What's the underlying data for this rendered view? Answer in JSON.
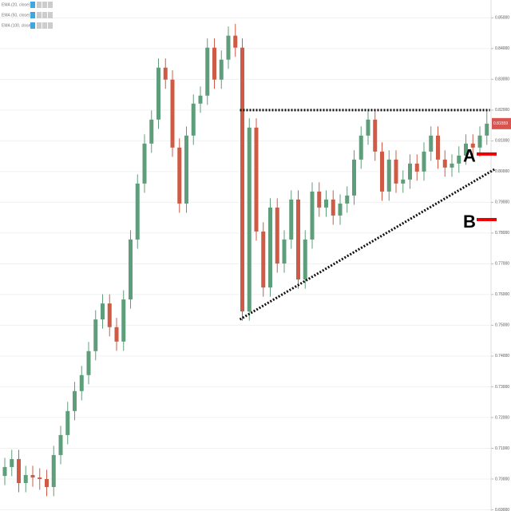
{
  "chart_data": {
    "type": "candlestick",
    "categories": [
      null,
      null,
      null,
      null,
      null,
      null,
      null,
      null,
      null,
      null,
      null,
      null,
      null,
      null,
      null,
      null,
      null,
      null,
      null,
      null,
      null,
      null,
      null,
      null,
      null,
      null,
      null,
      null,
      null,
      null,
      null,
      null,
      null,
      null,
      null,
      null,
      null,
      null,
      null,
      null,
      null,
      null,
      null,
      null,
      null,
      null,
      null,
      null,
      null,
      null,
      null,
      null,
      null,
      null,
      null,
      null,
      null,
      null,
      null,
      null,
      null,
      null,
      null,
      null,
      null,
      null,
      null,
      null,
      null,
      null
    ],
    "open": [
      0.701,
      0.7039,
      0.7065,
      0.6987,
      0.7013,
      0.7005,
      0.7,
      0.6974,
      0.7078,
      0.7143,
      0.7221,
      0.7286,
      0.7338,
      0.7416,
      0.7519,
      0.7571,
      0.7494,
      0.7447,
      0.7584,
      0.7779,
      0.7961,
      0.8091,
      0.8169,
      0.8338,
      0.8299,
      0.8078,
      0.7896,
      0.8117,
      0.8221,
      0.8247,
      0.8403,
      0.8299,
      0.8364,
      0.8442,
      0.8403,
      0.7545,
      0.8143,
      0.7805,
      0.7623,
      0.7883,
      0.7701,
      0.7779,
      0.7909,
      0.7649,
      0.7779,
      0.7935,
      0.7883,
      0.7909,
      0.7857,
      0.7896,
      0.7922,
      0.8039,
      0.8117,
      0.8169,
      0.8065,
      0.7935,
      0.8039,
      0.7961,
      0.7974,
      0.8026,
      0.8,
      0.8065,
      0.8117,
      0.8039,
      0.8013,
      0.8026,
      0.8052,
      0.8091,
      0.8078,
      0.8117
    ],
    "high": [
      0.7069,
      0.7095,
      0.7095,
      0.7043,
      0.7043,
      0.7035,
      0.703,
      0.7108,
      0.7173,
      0.7251,
      0.7316,
      0.7368,
      0.7446,
      0.7549,
      0.7601,
      0.7601,
      0.7524,
      0.7614,
      0.7809,
      0.7991,
      0.8121,
      0.8199,
      0.8368,
      0.8368,
      0.8329,
      0.8108,
      0.8147,
      0.8251,
      0.8277,
      0.8433,
      0.8433,
      0.8394,
      0.8472,
      0.848,
      0.8433,
      0.8173,
      0.8173,
      0.7835,
      0.7913,
      0.7913,
      0.7809,
      0.7939,
      0.7939,
      0.7809,
      0.7965,
      0.7965,
      0.7939,
      0.7939,
      0.7926,
      0.7952,
      0.8069,
      0.8147,
      0.8199,
      0.8199,
      0.8095,
      0.8069,
      0.8069,
      0.8004,
      0.8056,
      0.8056,
      0.8095,
      0.8147,
      0.8147,
      0.8069,
      0.8056,
      0.8082,
      0.8121,
      0.8121,
      0.8147,
      0.8199
    ],
    "low": [
      0.698,
      0.7009,
      0.6957,
      0.6957,
      0.6975,
      0.6965,
      0.6944,
      0.6944,
      0.7048,
      0.7113,
      0.7191,
      0.7256,
      0.7308,
      0.7386,
      0.7489,
      0.7464,
      0.7417,
      0.7417,
      0.7554,
      0.7749,
      0.7931,
      0.8061,
      0.8139,
      0.8269,
      0.8048,
      0.7866,
      0.7866,
      0.8087,
      0.8191,
      0.8217,
      0.8269,
      0.8269,
      0.8334,
      0.8373,
      0.7515,
      0.7515,
      0.7775,
      0.7593,
      0.7593,
      0.7671,
      0.7671,
      0.7749,
      0.7619,
      0.7619,
      0.7749,
      0.7853,
      0.7853,
      0.7827,
      0.7827,
      0.7866,
      0.7892,
      0.8009,
      0.8087,
      0.8035,
      0.7905,
      0.7905,
      0.7931,
      0.7931,
      0.7944,
      0.797,
      0.797,
      0.8035,
      0.8009,
      0.7983,
      0.7983,
      0.7996,
      0.8022,
      0.8048,
      0.8048,
      0.8087
    ],
    "close": [
      0.7039,
      0.7065,
      0.6987,
      0.7013,
      0.7005,
      0.7,
      0.6974,
      0.7078,
      0.7143,
      0.7221,
      0.7286,
      0.7338,
      0.7416,
      0.7519,
      0.7571,
      0.7494,
      0.7447,
      0.7584,
      0.7779,
      0.7961,
      0.8091,
      0.8169,
      0.8338,
      0.8299,
      0.8078,
      0.7896,
      0.8117,
      0.8221,
      0.8247,
      0.8403,
      0.8299,
      0.8364,
      0.8442,
      0.8403,
      0.7545,
      0.8143,
      0.7805,
      0.7623,
      0.7883,
      0.7701,
      0.7779,
      0.7909,
      0.7649,
      0.7779,
      0.7935,
      0.7883,
      0.7909,
      0.7857,
      0.7896,
      0.7922,
      0.8039,
      0.8117,
      0.8169,
      0.8065,
      0.7935,
      0.8039,
      0.7961,
      0.7974,
      0.8026,
      0.8,
      0.8065,
      0.8117,
      0.8039,
      0.8013,
      0.8026,
      0.8052,
      0.8091,
      0.8078,
      0.8117,
      0.81559
    ],
    "up_color": "#5f9e7a",
    "down_color": "#cf5a45",
    "ylim": [
      0.6896,
      0.8558
    ],
    "yticks": [
      {
        "value": 0.85,
        "label": "0.85000"
      },
      {
        "value": 0.84,
        "label": "0.84000"
      },
      {
        "value": 0.83,
        "label": "0.83000"
      },
      {
        "value": 0.82,
        "label": "0.82000"
      },
      {
        "value": 0.81,
        "label": "0.81000"
      },
      {
        "value": 0.8,
        "label": "0.80000"
      },
      {
        "value": 0.79,
        "label": "0.79000"
      },
      {
        "value": 0.78,
        "label": "0.78000"
      },
      {
        "value": 0.77,
        "label": "0.77000"
      },
      {
        "value": 0.76,
        "label": "0.76000"
      },
      {
        "value": 0.75,
        "label": "0.75000"
      },
      {
        "value": 0.74,
        "label": "0.74000"
      },
      {
        "value": 0.73,
        "label": "0.73000"
      },
      {
        "value": 0.72,
        "label": "0.72000"
      },
      {
        "value": 0.71,
        "label": "0.71000"
      },
      {
        "value": 0.7,
        "label": "0.70000"
      },
      {
        "value": 0.69,
        "label": "0.69000"
      }
    ],
    "grid": true,
    "last_price": {
      "value": 0.81559,
      "label": "0.81559"
    },
    "indicators": [
      "EMA (20, close)",
      "EMA (50, close)",
      "EMA (100, close)"
    ],
    "resistance": {
      "start": 34,
      "end": 69,
      "value": 0.82
    },
    "support": {
      "start": 34,
      "end": 69,
      "from": 0.7519,
      "to": 0.8008
    },
    "levels": [
      {
        "label": "A",
        "value": 0.8057
      },
      {
        "label": "B",
        "value": 0.7844
      }
    ]
  }
}
